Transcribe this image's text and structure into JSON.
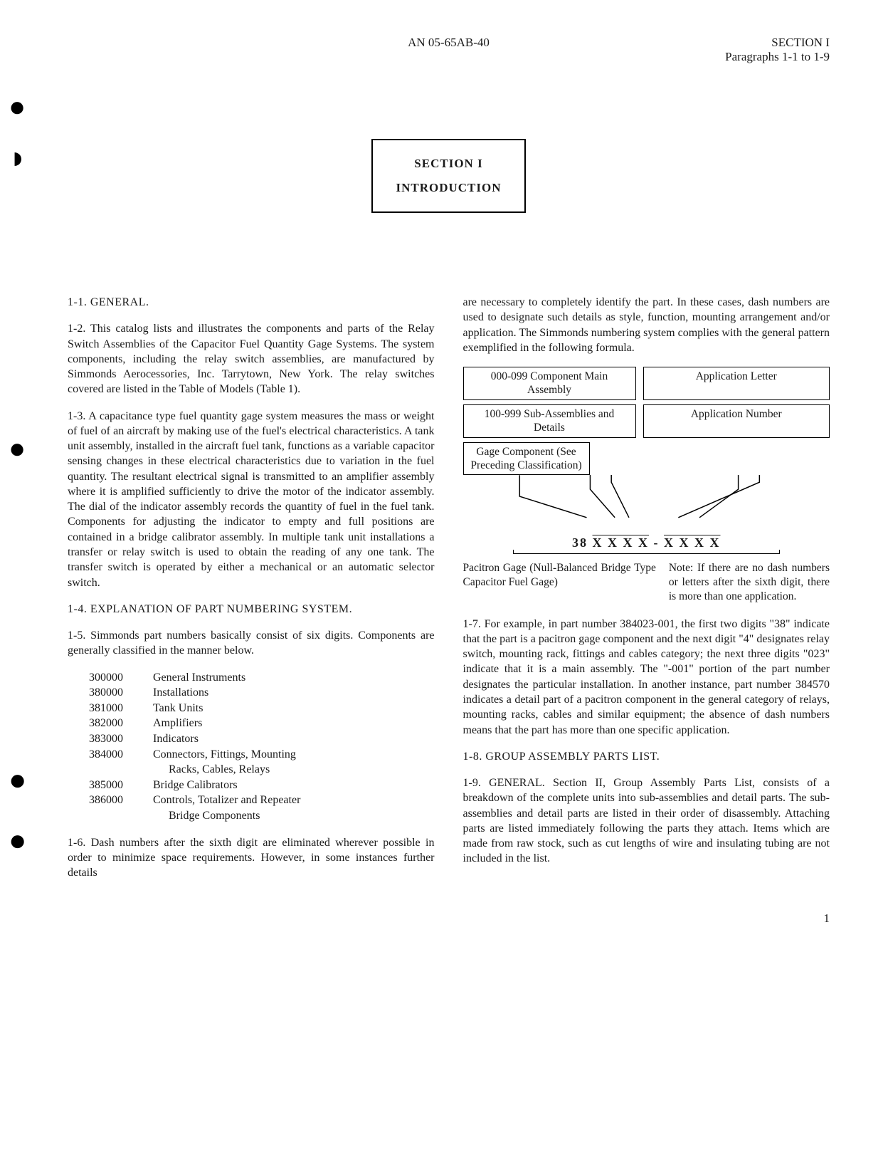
{
  "doc_id": "AN 05-65AB-40",
  "section_label": "SECTION I",
  "para_range": "Paragraphs 1-1 to 1-9",
  "title_line1": "SECTION I",
  "title_line2": "INTRODUCTION",
  "page_number": "1",
  "left": {
    "p1": "1-1.  GENERAL.",
    "p2": "1-2.  This catalog lists and illustrates the components and parts of the Relay Switch Assemblies of the Capacitor Fuel Quantity Gage Systems.  The system components, including the relay switch assemblies, are manufactured by Simmonds Aerocessories, Inc. Tarrytown, New York.  The relay switches covered are listed in the Table of Models (Table 1).",
    "p3": "1-3.  A capacitance type fuel quantity gage system measures the mass or weight of fuel of an aircraft by making use of the fuel's electrical characteristics.  A tank unit assembly, installed in the aircraft fuel tank, functions as a variable capacitor sensing changes in these electrical characteristics due to variation in the fuel quantity.  The resultant electrical signal is transmitted to an amplifier assembly where it is amplified sufficiently to drive the motor of the indicator assembly.  The dial of the indicator assembly records the quantity of fuel in the fuel tank.  Components for adjusting the indicator to empty and full positions are contained in a bridge calibrator assembly.  In multiple tank unit installations a transfer or relay switch is used to obtain the reading of any one tank.  The transfer switch is operated by either a mechanical or an automatic selector switch.",
    "p4": "1-4.  EXPLANATION OF PART NUMBERING SYSTEM.",
    "p5": "1-5.  Simmonds part numbers basically consist of six digits.  Components are generally classified in the manner below.",
    "table": [
      {
        "code": "300000",
        "desc": "General Instruments"
      },
      {
        "code": "380000",
        "desc": "Installations"
      },
      {
        "code": "381000",
        "desc": "Tank Units"
      },
      {
        "code": "382000",
        "desc": "Amplifiers"
      },
      {
        "code": "383000",
        "desc": "Indicators"
      },
      {
        "code": "384000",
        "desc": "Connectors, Fittings, Mounting"
      },
      {
        "code": "",
        "desc": "Racks, Cables, Relays",
        "indent": true
      },
      {
        "code": "385000",
        "desc": "Bridge Calibrators"
      },
      {
        "code": "386000",
        "desc": "Controls, Totalizer and Repeater"
      },
      {
        "code": "",
        "desc": "Bridge Components",
        "indent": true
      }
    ],
    "p6": "1-6.  Dash numbers after the sixth digit are eliminated wherever possible in order to minimize space requirements.  However, in some instances further details"
  },
  "right": {
    "p_cont": "are necessary to completely identify the part.  In these cases, dash numbers are used to designate such details as style, function, mounting arrangement and/or application.  The Simmonds numbering system complies with the general pattern exemplified in the following formula.",
    "diag": {
      "box_a": "000-099 Component Main Assembly",
      "box_b": "Application Letter",
      "box_c": "100-999 Sub-Assemblies and Details",
      "box_d": "Application Number",
      "box_e": "Gage Component (See Preceding Classification)",
      "formula_prefix": "38",
      "formula_x": "X X X X",
      "formula_sep": " - ",
      "formula_x2": "X X X X",
      "caption_left": "Pacitron Gage (Null-Balanced Bridge Type Capacitor Fuel Gage)",
      "caption_right": "Note: If there are no dash numbers or letters after the sixth digit, there is more than one application."
    },
    "p7": "1-7.  For example, in part number 384023-001, the first two digits \"38\" indicate that the part is a pacitron gage component and the next digit \"4\" designates relay switch, mounting rack, fittings and cables category; the next three digits \"023\" indicate that it is a main assembly.  The \"-001\" portion of the part number designates the particular installation.  In another instance, part number 384570 indicates a detail part of a pacitron component in the general category of relays, mounting racks, cables and similar equipment; the absence of dash numbers means that the part has more than one specific application.",
    "p8": "1-8.  GROUP ASSEMBLY PARTS LIST.",
    "p9": "1-9.  GENERAL.  Section II, Group Assembly Parts List, consists of a breakdown of the complete units into sub-assemblies and detail parts.  The sub-assemblies and detail parts are listed in their order of disassembly.  Attaching parts are listed immediately following the parts they attach.  Items which are made from raw stock, such as cut lengths of wire and insulating tubing are not included in the list."
  }
}
